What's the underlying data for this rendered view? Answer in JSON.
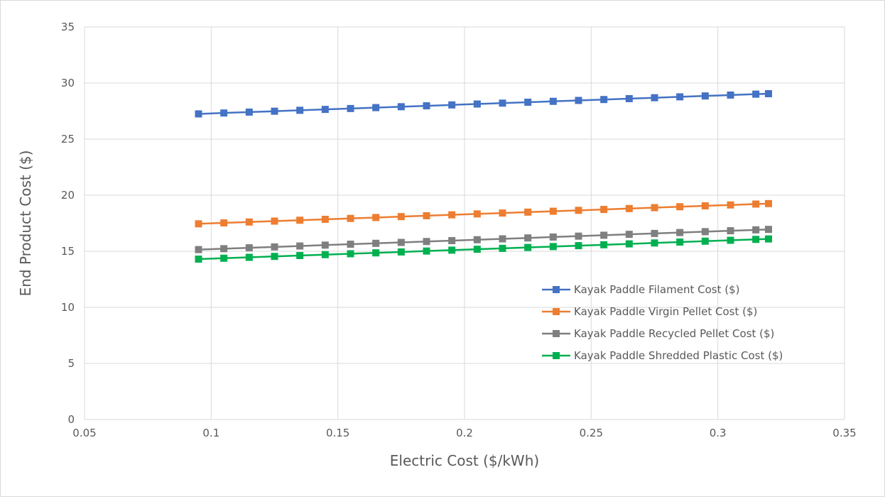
{
  "chart_data": {
    "type": "line",
    "title": "",
    "xlabel": "Electric Cost ($/kWh)",
    "ylabel": "End Product  Cost ($)",
    "xlim": [
      0.05,
      0.35
    ],
    "ylim": [
      0,
      35
    ],
    "x_ticks": [
      0.05,
      0.1,
      0.15,
      0.2,
      0.25,
      0.3,
      0.35
    ],
    "x_tick_labels": [
      "0.05",
      "0.1",
      "0.15",
      "0.2",
      "0.25",
      "0.3",
      "0.35"
    ],
    "y_ticks": [
      0,
      5,
      10,
      15,
      20,
      25,
      30,
      35
    ],
    "y_tick_labels": [
      "0",
      "5",
      "10",
      "15",
      "20",
      "25",
      "30",
      "35"
    ],
    "grid": true,
    "legend_position": "lower-right",
    "marker": "square",
    "x": [
      0.095,
      0.105,
      0.115,
      0.125,
      0.135,
      0.145,
      0.155,
      0.165,
      0.175,
      0.185,
      0.195,
      0.205,
      0.215,
      0.225,
      0.235,
      0.245,
      0.255,
      0.265,
      0.275,
      0.285,
      0.295,
      0.305,
      0.315,
      0.32
    ],
    "series": [
      {
        "name": "Kayak Paddle Filament Cost ($)",
        "color": "#4472C4",
        "values": [
          27.25,
          27.33,
          27.41,
          27.49,
          27.57,
          27.65,
          27.73,
          27.81,
          27.89,
          27.97,
          28.05,
          28.13,
          28.21,
          28.29,
          28.37,
          28.45,
          28.53,
          28.61,
          28.69,
          28.77,
          28.85,
          28.93,
          29.01,
          29.05
        ]
      },
      {
        "name": "Kayak Paddle Virgin Pellet Cost ($)",
        "color": "#ED7D31",
        "values": [
          17.45,
          17.53,
          17.61,
          17.69,
          17.77,
          17.85,
          17.93,
          18.01,
          18.09,
          18.17,
          18.25,
          18.33,
          18.41,
          18.49,
          18.57,
          18.65,
          18.73,
          18.81,
          18.89,
          18.97,
          19.05,
          19.13,
          19.21,
          19.25
        ]
      },
      {
        "name": "Kayak Paddle Recycled Pellet Cost ($)",
        "color": "#7F7F7F",
        "values": [
          15.15,
          15.23,
          15.31,
          15.39,
          15.47,
          15.55,
          15.63,
          15.71,
          15.79,
          15.87,
          15.95,
          16.03,
          16.11,
          16.19,
          16.27,
          16.35,
          16.43,
          16.51,
          16.59,
          16.67,
          16.75,
          16.83,
          16.91,
          16.95
        ]
      },
      {
        "name": "Kayak Paddle Shredded Plastic Cost ($)",
        "color": "#00B050",
        "values": [
          14.3,
          14.38,
          14.46,
          14.54,
          14.62,
          14.7,
          14.78,
          14.86,
          14.94,
          15.02,
          15.1,
          15.18,
          15.26,
          15.34,
          15.42,
          15.5,
          15.58,
          15.66,
          15.74,
          15.82,
          15.9,
          15.98,
          16.06,
          16.1
        ]
      }
    ]
  }
}
